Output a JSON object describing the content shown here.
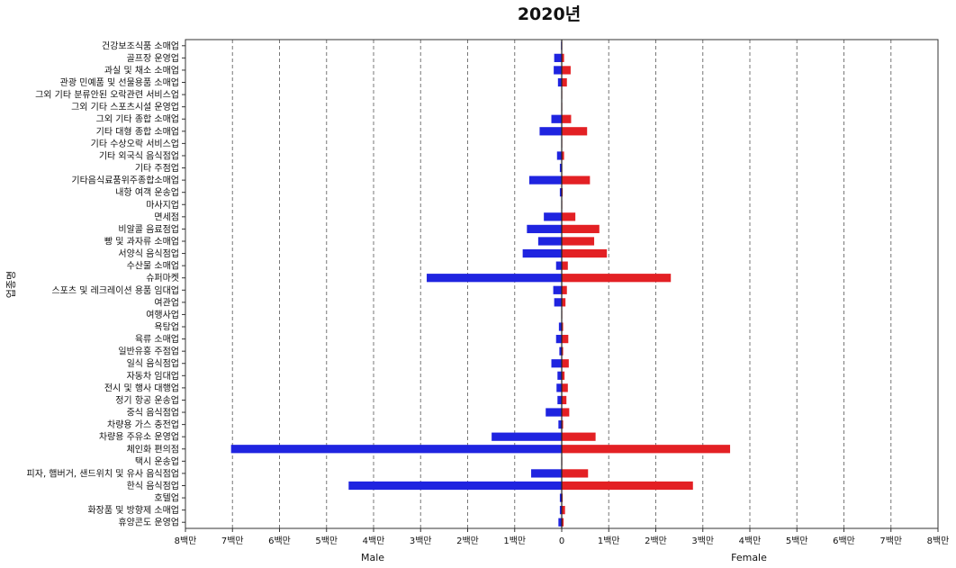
{
  "chart_data": {
    "type": "bar",
    "orientation": "horizontal-butterfly",
    "title": "2020년",
    "ylabel": "업종명",
    "xlabel_left": "Male",
    "xlabel_right": "Female",
    "xlim": [
      -8000000,
      8000000
    ],
    "xticks": [
      -8000000,
      -7000000,
      -6000000,
      -5000000,
      -4000000,
      -3000000,
      -2000000,
      -1000000,
      0,
      1000000,
      2000000,
      3000000,
      4000000,
      5000000,
      6000000,
      7000000,
      8000000
    ],
    "xtick_labels": [
      "8백만",
      "7백만",
      "6백만",
      "5백만",
      "4백만",
      "3백만",
      "2백만",
      "1백만",
      "0",
      "1백만",
      "2백만",
      "3백만",
      "4백만",
      "5백만",
      "6백만",
      "7백만",
      "8백만"
    ],
    "grid": "vertical dashed",
    "colors": {
      "male": "#1f24e0",
      "female": "#e32024",
      "axis": "#333333",
      "grid": "#777777"
    },
    "categories": [
      "건강보조식품 소매업",
      "골프장 운영업",
      "과실 및 채소 소매업",
      "관광 민예품 및 선물용품 소매업",
      "그외 기타 분류안된 오락관련 서비스업",
      "그외 기타 스포츠시설 운영업",
      "그외 기타 종합 소매업",
      "기타 대형 종합 소매업",
      "기타 수상오락 서비스업",
      "기타 외국식 음식점업",
      "기타 주점업",
      "기타음식료품위주종합소매업",
      "내항 여객 운송업",
      "마사지업",
      "면세점",
      "비알콜 음료점업",
      "빵 및 과자류 소매업",
      "서양식 음식점업",
      "수산물 소매업",
      "슈퍼마켓",
      "스포츠 및 레크레이션 용품 임대업",
      "여관업",
      "여행사업",
      "욕탕업",
      "육류 소매업",
      "일반유흥 주점업",
      "일식 음식점업",
      "자동차 임대업",
      "전시 및 행사 대행업",
      "정기 항공 운송업",
      "중식 음식점업",
      "차량용 가스 충전업",
      "차량용 주유소 운영업",
      "체인화 편의점",
      "택시 운송업",
      "피자, 햄버거, 샌드위치 및 유사 음식점업",
      "한식 음식점업",
      "호텔업",
      "화장품 및 방향제 소매업",
      "휴양콘도 운영업"
    ],
    "series": [
      {
        "name": "Male",
        "values": [
          -15000,
          -160000,
          -170000,
          -80000,
          -10000,
          -10000,
          -220000,
          -470000,
          -10000,
          -100000,
          -40000,
          -690000,
          -40000,
          -10000,
          -380000,
          -740000,
          -500000,
          -830000,
          -120000,
          -2870000,
          -180000,
          -160000,
          -10000,
          -60000,
          -120000,
          -50000,
          -220000,
          -90000,
          -110000,
          -90000,
          -340000,
          -70000,
          -1490000,
          -7030000,
          -10000,
          -650000,
          -4530000,
          -40000,
          -40000,
          -70000
        ]
      },
      {
        "name": "Female",
        "values": [
          10000,
          50000,
          190000,
          110000,
          10000,
          10000,
          200000,
          540000,
          10000,
          50000,
          10000,
          600000,
          20000,
          10000,
          290000,
          800000,
          690000,
          960000,
          130000,
          2320000,
          110000,
          80000,
          10000,
          30000,
          140000,
          30000,
          150000,
          60000,
          130000,
          100000,
          160000,
          30000,
          720000,
          3580000,
          10000,
          560000,
          2790000,
          20000,
          70000,
          40000
        ]
      }
    ]
  }
}
